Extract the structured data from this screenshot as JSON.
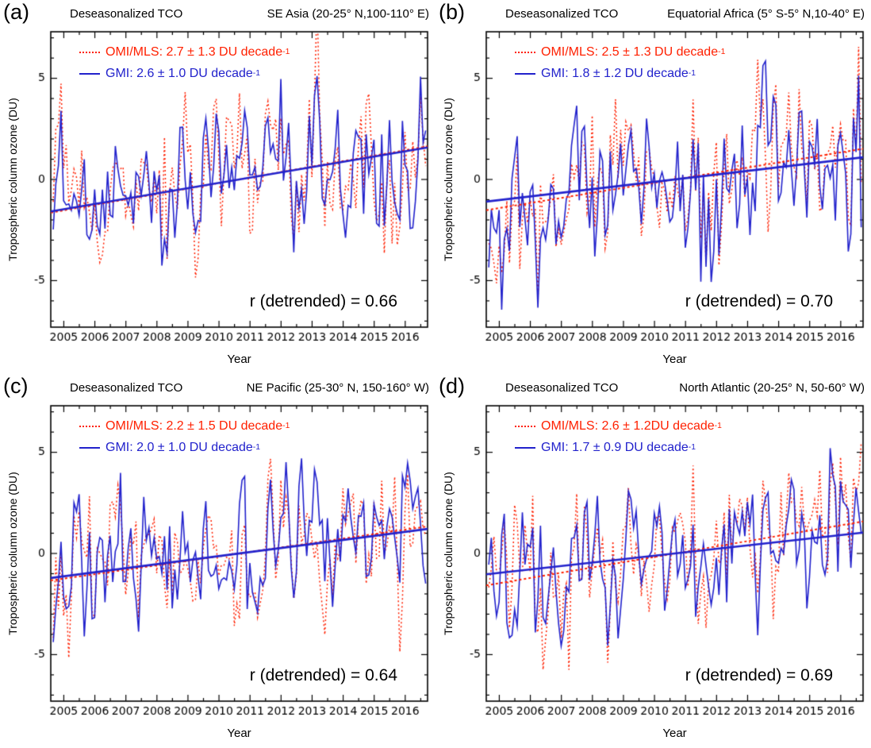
{
  "figure": {
    "background": "#ffffff",
    "colors": {
      "omi": "#ff2000",
      "gmi": "#2222cc",
      "axis": "#000000",
      "text": "#000000"
    },
    "panels": [
      {
        "letter": "(a)",
        "title_left": "Deseasonalized TCO",
        "title_right": "SE Asia (20-25° N,100-110° E)",
        "ylabel": "Tropospheric column ozone (DU)",
        "xlabel": "Year",
        "legend": {
          "omi_text": "OMI/MLS:  2.7 ± 1.3 DU decade",
          "omi_sup": "-1",
          "gmi_text": "GMI:  2.6 ± 1.0 DU  decade",
          "gmi_sup": "-1"
        },
        "r_text": "r (detrended) = 0.66"
      },
      {
        "letter": "(b)",
        "title_left": "Deseasonalized TCO",
        "title_right": "Equatorial Africa (5° S-5° N,10-40° E)",
        "ylabel": "Tropospheric column ozone (DU)",
        "xlabel": "Year",
        "legend": {
          "omi_text": "OMI/MLS:  2.5 ± 1.3 DU decade",
          "omi_sup": "-1",
          "gmi_text": "GMI:  1.8 ± 1.2 DU  decade",
          "gmi_sup": "-1"
        },
        "r_text": "r (detrended) = 0.70"
      },
      {
        "letter": "(c)",
        "title_left": "Deseasonalized TCO",
        "title_right": "NE Pacific (25-30° N, 150-160° W)",
        "ylabel": "Tropospheric column ozone (DU)",
        "xlabel": "Year",
        "legend": {
          "omi_text": "OMI/MLS: 2.2  ± 1.5 DU decade",
          "omi_sup": "-1",
          "gmi_text": "GMI: 2.0  ± 1.0 DU decade",
          "gmi_sup": "-1"
        },
        "r_text": "r (detrended) = 0.64"
      },
      {
        "letter": "(d)",
        "title_left": "Deseasonalized TCO",
        "title_right": "North Atlantic (20-25° N, 50-60° W)",
        "ylabel": "Tropospheric column ozone (DU)",
        "xlabel": "Year",
        "legend": {
          "omi_text": "OMI/MLS: 2.6  ± 1.2DU decade",
          "omi_sup": "-1",
          "gmi_text": "GMI: 1.7  ± 0.9 DU decade",
          "gmi_sup": "-1"
        },
        "r_text": "r (detrended) = 0.69"
      }
    ]
  },
  "chart_data": [
    {
      "type": "line",
      "panel": "a",
      "title": "Deseasonalized TCO",
      "region": "SE Asia (20-25° N,100-110° E)",
      "xlabel": "Year",
      "ylabel": "Tropospheric column ozone (DU)",
      "xlim": [
        2004.58,
        2016.72
      ],
      "ylim": [
        -7.3,
        7.3
      ],
      "x_ticks": [
        2005,
        2006,
        2007,
        2008,
        2009,
        2010,
        2011,
        2012,
        2013,
        2014,
        2015,
        2016
      ],
      "y_ticks": [
        -5,
        0,
        5
      ],
      "y_minor_step": 1,
      "x_minor_step": 0.5,
      "resolution": "monthly",
      "grid": false,
      "legend_position": "top-left-inside",
      "series": [
        {
          "name": "OMI/MLS",
          "style": "dotted",
          "color": "#ff2000",
          "trend_du_per_decade": 2.7,
          "trend_uncertainty": 1.3,
          "units": "DU decade^-1",
          "noise_sd": 2.0,
          "seed": 11
        },
        {
          "name": "GMI",
          "style": "solid",
          "color": "#2222cc",
          "trend_du_per_decade": 2.6,
          "trend_uncertainty": 1.0,
          "units": "DU decade^-1",
          "noise_sd": 1.9,
          "seed": 55
        }
      ],
      "seed_common": 101,
      "r_detrended": 0.66
    },
    {
      "type": "line",
      "panel": "b",
      "title": "Deseasonalized TCO",
      "region": "Equatorial Africa (5° S-5° N,10-40° E)",
      "xlabel": "Year",
      "ylabel": "Tropospheric column ozone (DU)",
      "xlim": [
        2004.58,
        2016.72
      ],
      "ylim": [
        -7.3,
        7.3
      ],
      "x_ticks": [
        2005,
        2006,
        2007,
        2008,
        2009,
        2010,
        2011,
        2012,
        2013,
        2014,
        2015,
        2016
      ],
      "y_ticks": [
        -5,
        0,
        5
      ],
      "y_minor_step": 1,
      "x_minor_step": 0.5,
      "resolution": "monthly",
      "grid": false,
      "legend_position": "top-left-inside",
      "series": [
        {
          "name": "OMI/MLS",
          "style": "dotted",
          "color": "#ff2000",
          "trend_du_per_decade": 2.5,
          "trend_uncertainty": 1.3,
          "units": "DU decade^-1",
          "noise_sd": 1.9,
          "seed": 22
        },
        {
          "name": "GMI",
          "style": "solid",
          "color": "#2222cc",
          "trend_du_per_decade": 1.8,
          "trend_uncertainty": 1.2,
          "units": "DU decade^-1",
          "noise_sd": 2.0,
          "seed": 66
        }
      ],
      "seed_common": 202,
      "r_detrended": 0.7
    },
    {
      "type": "line",
      "panel": "c",
      "title": "Deseasonalized TCO",
      "region": "NE Pacific (25-30° N, 150-160° W)",
      "xlabel": "Year",
      "ylabel": "Tropospheric column ozone (DU)",
      "xlim": [
        2004.58,
        2016.72
      ],
      "ylim": [
        -7.3,
        7.3
      ],
      "x_ticks": [
        2005,
        2006,
        2007,
        2008,
        2009,
        2010,
        2011,
        2012,
        2013,
        2014,
        2015,
        2016
      ],
      "y_ticks": [
        -5,
        0,
        5
      ],
      "y_minor_step": 1,
      "x_minor_step": 0.5,
      "resolution": "monthly",
      "grid": false,
      "legend_position": "top-left-inside",
      "series": [
        {
          "name": "OMI/MLS",
          "style": "dotted",
          "color": "#ff2000",
          "trend_du_per_decade": 2.2,
          "trend_uncertainty": 1.5,
          "units": "DU decade^-1",
          "noise_sd": 2.0,
          "seed": 33
        },
        {
          "name": "GMI",
          "style": "solid",
          "color": "#2222cc",
          "trend_du_per_decade": 2.0,
          "trend_uncertainty": 1.0,
          "units": "DU decade^-1",
          "noise_sd": 1.9,
          "seed": 77
        }
      ],
      "seed_common": 303,
      "r_detrended": 0.64
    },
    {
      "type": "line",
      "panel": "d",
      "title": "Deseasonalized TCO",
      "region": "North Atlantic (20-25° N, 50-60° W)",
      "xlabel": "Year",
      "ylabel": "Tropospheric column ozone (DU)",
      "xlim": [
        2004.58,
        2016.72
      ],
      "ylim": [
        -7.3,
        7.3
      ],
      "x_ticks": [
        2005,
        2006,
        2007,
        2008,
        2009,
        2010,
        2011,
        2012,
        2013,
        2014,
        2015,
        2016
      ],
      "y_ticks": [
        -5,
        0,
        5
      ],
      "y_minor_step": 1,
      "x_minor_step": 0.5,
      "resolution": "monthly",
      "grid": false,
      "legend_position": "top-left-inside",
      "series": [
        {
          "name": "OMI/MLS",
          "style": "dotted",
          "color": "#ff2000",
          "trend_du_per_decade": 2.6,
          "trend_uncertainty": 1.2,
          "units": "DU decade^-1",
          "noise_sd": 1.9,
          "seed": 44
        },
        {
          "name": "GMI",
          "style": "solid",
          "color": "#2222cc",
          "trend_du_per_decade": 1.7,
          "trend_uncertainty": 0.9,
          "units": "DU decade^-1",
          "noise_sd": 1.9,
          "seed": 88
        }
      ],
      "seed_common": 404,
      "r_detrended": 0.69
    }
  ]
}
